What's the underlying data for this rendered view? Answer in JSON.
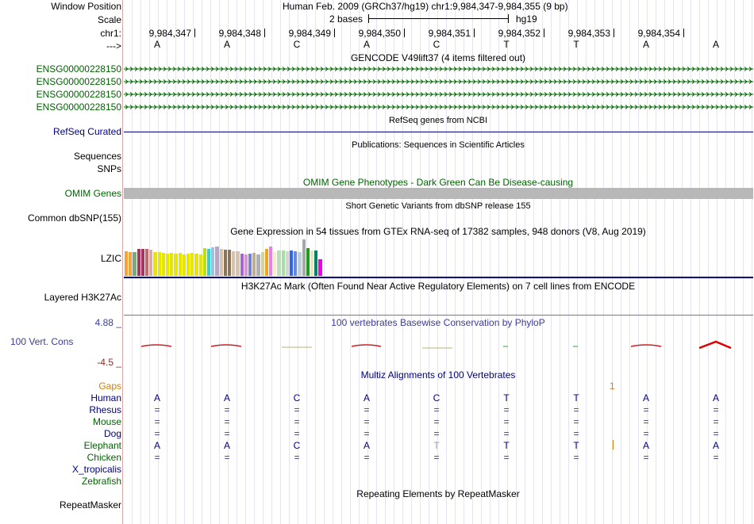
{
  "header": {
    "window_position_label": "Window Position",
    "window_position_value": "Human Feb. 2009 (GRCh37/hg19)   chr1:9,984,347-9,984,355 (9 bp)",
    "scale_label": "Scale",
    "scale_value": "2 bases",
    "scale_assembly": "hg19",
    "chrom_label": "chr1:",
    "strand_label": "--->",
    "positions": [
      "9,984,347",
      "9,984,348",
      "9,984,349",
      "9,984,350",
      "9,984,351",
      "9,984,352",
      "9,984,353",
      "9,984,354"
    ],
    "bases": [
      "A",
      "A",
      "C",
      "A",
      "C",
      "T",
      "T",
      "A",
      "A"
    ]
  },
  "tracks": {
    "gencode_title": "GENCODE V49lift37 (4 items filtered out)",
    "gencode_items": [
      "ENSG00000228150",
      "ENSG00000228150",
      "ENSG00000228150",
      "ENSG00000228150"
    ],
    "refseq_title": "RefSeq genes from NCBI",
    "refseq_label": "RefSeq Curated",
    "publications_title": "Publications: Sequences in Scientific Articles",
    "sequences_label": "Sequences",
    "snps_label": "SNPs",
    "omim_title": "OMIM Gene Phenotypes - Dark Green Can Be Disease-causing",
    "omim_label": "OMIM Genes",
    "dbsnp_title": "Short Genetic Variants from dbSNP release 155",
    "dbsnp_label": "Common dbSNP(155)",
    "gtex_title": "Gene Expression in 54 tissues from GTEx RNA-seq of 17382 samples, 948 donors (V8, Aug 2019)",
    "gtex_label": "LZIC",
    "h3k27_title": "H3K27Ac Mark (Often Found Near Active Regulatory Elements) on 7 cell lines from ENCODE",
    "h3k27_label": "Layered H3K27Ac",
    "cons_title": "100 vertebrates Basewise Conservation by PhyloP",
    "cons_max": "4.88 _",
    "cons_label": "100 Vert. Cons",
    "cons_min": "-4.5 _",
    "multiz_title": "Multiz Alignments of 100 Vertebrates",
    "gaps_label": "Gaps",
    "gaps_value": "1",
    "species": [
      {
        "name": "Human",
        "color": "#000080"
      },
      {
        "name": "Rhesus",
        "color": "#000080"
      },
      {
        "name": "Mouse",
        "color": "#006400"
      },
      {
        "name": "Dog",
        "color": "#000080"
      },
      {
        "name": "Elephant",
        "color": "#006400"
      },
      {
        "name": "Chicken",
        "color": "#006400"
      },
      {
        "name": "X_tropicalis",
        "color": "#000080"
      },
      {
        "name": "Zebrafish",
        "color": "#006400"
      }
    ],
    "human_bases": [
      "A",
      "A",
      "C",
      "A",
      "C",
      "T",
      "T",
      "A",
      "A"
    ],
    "identity_symbol": "=",
    "elephant_bases": [
      "A",
      "A",
      "C",
      "A",
      "T",
      "T",
      "T",
      "A",
      "A"
    ],
    "repeat_title": "Repeating Elements by RepeatMasker",
    "repeat_label": "RepeatMasker"
  },
  "colors": {
    "gene_green": "#006400",
    "navy": "#000080",
    "gray": "#b8b8b8",
    "cons_blue": "#3b3b9b",
    "cons_red": "#8b2a2a",
    "gaps_orange": "#d08000"
  },
  "gtex_colors": [
    "#f3a33a",
    "#f3a33a",
    "#7caa76",
    "#a3355f",
    "#a3355f",
    "#cc6666",
    "#d9a9a9",
    "#e6e600",
    "#e6e600",
    "#e6e600",
    "#e6e600",
    "#e6e600",
    "#e6e600",
    "#e6e600",
    "#e6e600",
    "#e6e600",
    "#e6e600",
    "#e6e600",
    "#e6e600",
    "#b4e40e",
    "#35d0c8",
    "#99c2e6",
    "#b7a6c8",
    "#d7c3ad",
    "#8b7557",
    "#8b7557",
    "#d7c3ad",
    "#d7c3ad",
    "#a864d2",
    "#d298d2",
    "#7c7cdc",
    "#bbb08c",
    "#b0b0b0",
    "#d4d2a1",
    "#f5a323",
    "#ed7eed",
    "#f3efc2",
    "#bbdfbb",
    "#a4e0a4",
    "#d4d4d4",
    "#3366e6",
    "#6688dd",
    "#b8d0e0",
    "#a8a8a8",
    "#1b9c1b",
    "#e6e6b8",
    "#00806f",
    "#ee00ee"
  ],
  "gtex_values": [
    0.65,
    0.62,
    0.62,
    0.7,
    0.7,
    0.7,
    0.68,
    0.62,
    0.62,
    0.6,
    0.58,
    0.6,
    0.58,
    0.6,
    0.56,
    0.58,
    0.6,
    0.58,
    0.56,
    0.72,
    0.7,
    0.75,
    0.78,
    0.7,
    0.68,
    0.68,
    0.65,
    0.64,
    0.58,
    0.56,
    0.58,
    0.6,
    0.56,
    0.62,
    0.7,
    0.78,
    0.62,
    0.66,
    0.66,
    0.64,
    0.66,
    0.64,
    0.62,
    0.95,
    0.72,
    0.66,
    0.66,
    0.44
  ]
}
